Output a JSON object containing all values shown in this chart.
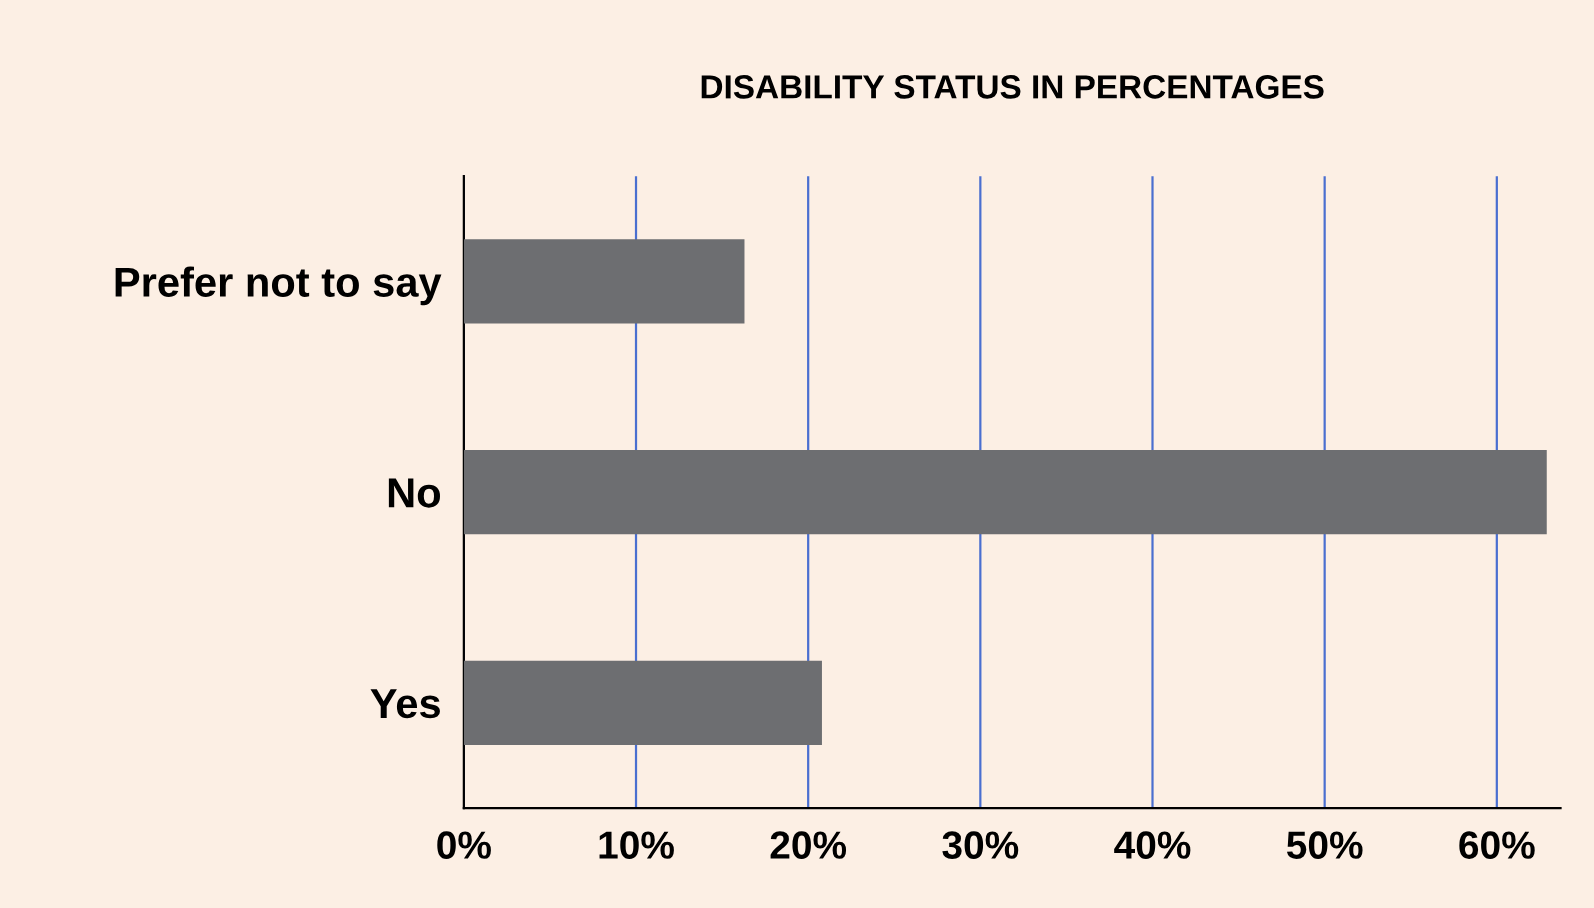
{
  "chart_data": {
    "type": "bar",
    "orientation": "horizontal",
    "title": "DISABILITY STATUS IN PERCENTAGES",
    "categories": [
      "Prefer not to say",
      "No",
      "Yes"
    ],
    "values": [
      16.3,
      62.9,
      20.8
    ],
    "color": "#6d6e71",
    "xlim": [
      0,
      63.7
    ],
    "xticks": [
      {
        "value": 0,
        "label": "0%"
      },
      {
        "value": 10,
        "label": "10%"
      },
      {
        "value": 20,
        "label": "20%"
      },
      {
        "value": 30,
        "label": "30%"
      },
      {
        "value": 40,
        "label": "40%"
      },
      {
        "value": 50,
        "label": "50%"
      },
      {
        "value": 60,
        "label": "60%"
      }
    ],
    "grid": "x"
  }
}
